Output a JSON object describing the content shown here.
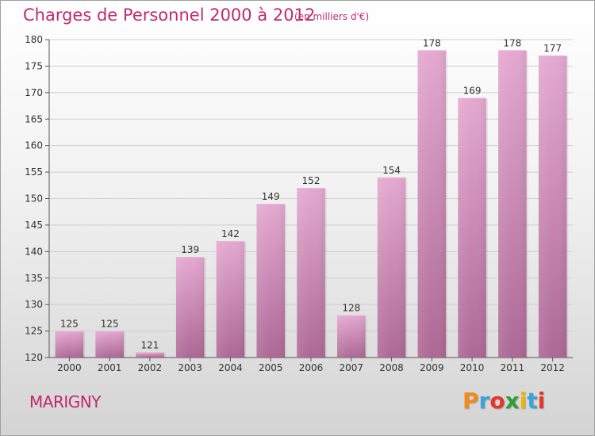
{
  "header": {
    "title": "Charges de Personnel 2000 à 2012",
    "subtitle": "(en milliers d'€)"
  },
  "footer": {
    "commune": "MARIGNY",
    "logo_text": "Proxiti",
    "logo_colors": [
      "#f08a1c",
      "#3aa3db",
      "#e7352b",
      "#2f9e3a",
      "#f0b400",
      "#3aa3db",
      "#e7352b"
    ]
  },
  "chart_data": {
    "type": "bar",
    "title": "Charges de Personnel 2000 à 2012",
    "subtitle": "(en milliers d'€)",
    "categories": [
      "2000",
      "2001",
      "2002",
      "2003",
      "2004",
      "2005",
      "2006",
      "2007",
      "2008",
      "2009",
      "2010",
      "2011",
      "2012"
    ],
    "values": [
      125,
      125,
      121,
      139,
      142,
      149,
      152,
      128,
      154,
      178,
      169,
      178,
      177
    ],
    "ylim": [
      120,
      180
    ],
    "yticks": [
      120,
      125,
      130,
      135,
      140,
      145,
      150,
      155,
      160,
      165,
      170,
      175,
      180
    ],
    "grid": true,
    "bar_color": "#d38ab6"
  }
}
